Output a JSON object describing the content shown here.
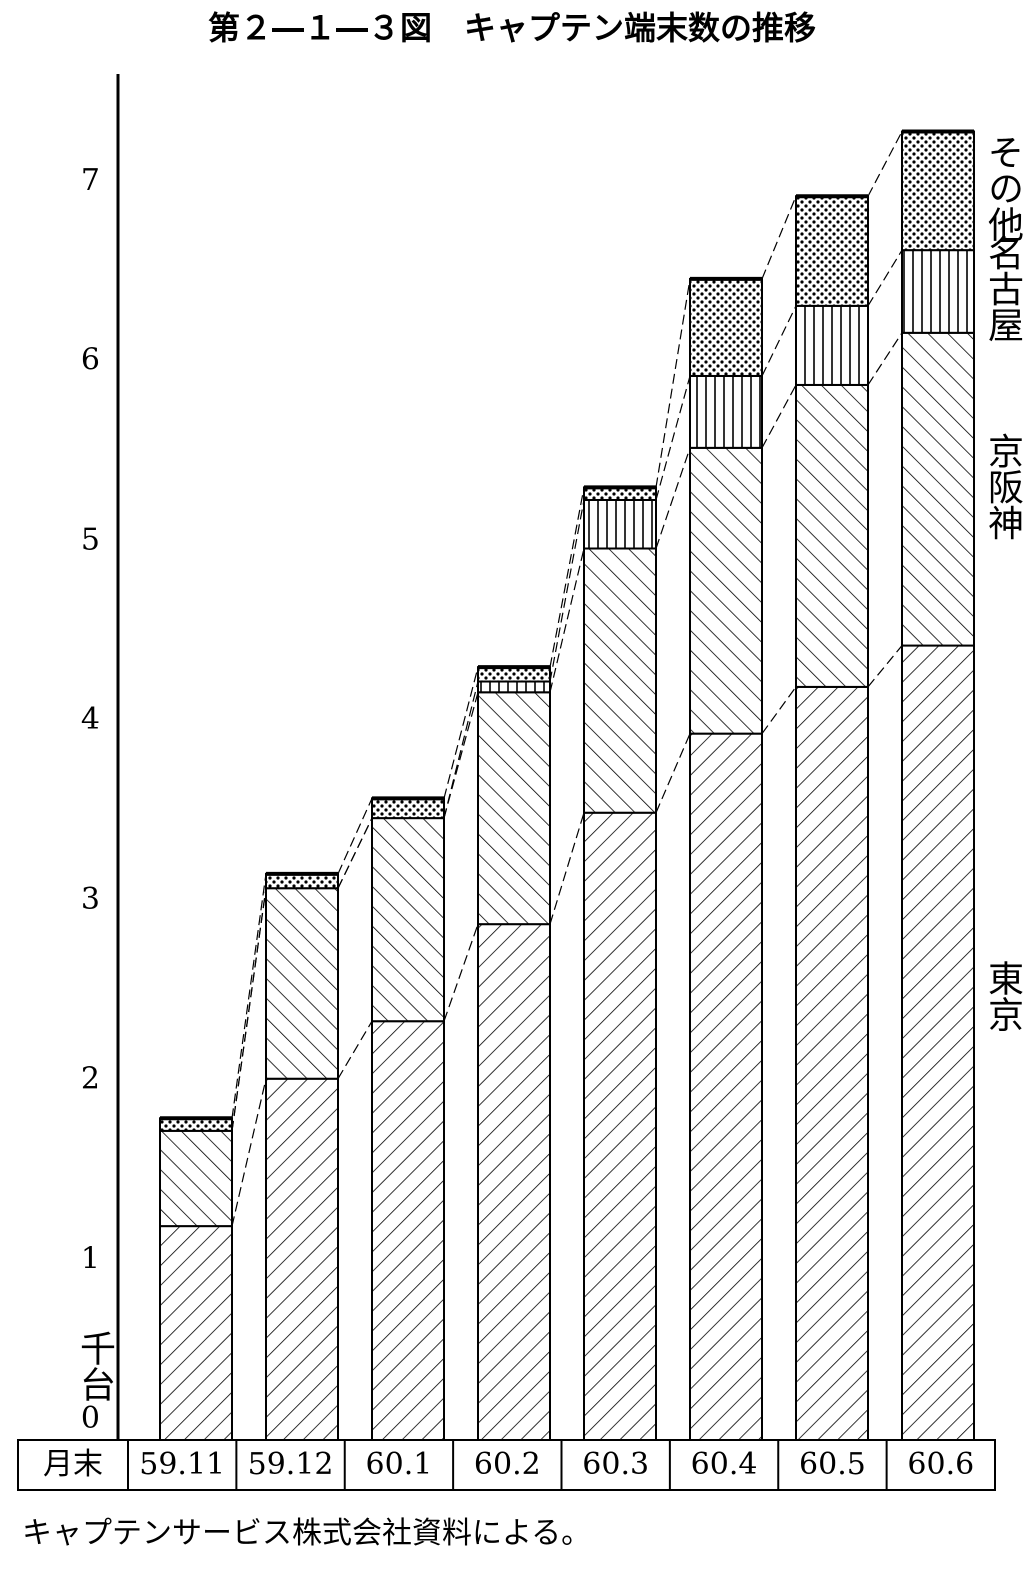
{
  "chart_data": {
    "type": "stacked-bar",
    "title": "第２―１―３図　キャプテン端末数の推移",
    "y_label": "千台",
    "category_label": "月末",
    "source": "キャプテンサービス株式会社資料による。",
    "categories": [
      "59.11",
      "59.12",
      "60.1",
      "60.2",
      "60.3",
      "60.4",
      "60.5",
      "60.6"
    ],
    "series": [
      {
        "name": "東京",
        "pattern": "hatch-forward",
        "values": [
          1.19,
          2.01,
          2.33,
          2.87,
          3.49,
          3.93,
          4.19,
          4.42
        ]
      },
      {
        "name": "京阪神",
        "pattern": "hatch-back",
        "values": [
          0.53,
          1.06,
          1.13,
          1.29,
          1.47,
          1.59,
          1.68,
          1.74
        ]
      },
      {
        "name": "名古屋",
        "pattern": "vertical",
        "values": [
          0,
          0,
          0,
          0.06,
          0.27,
          0.4,
          0.44,
          0.46
        ]
      },
      {
        "name": "その他",
        "pattern": "dots",
        "values": [
          0.07,
          0.08,
          0.11,
          0.08,
          0.07,
          0.54,
          0.61,
          0.66
        ]
      }
    ],
    "ylim": [
      0,
      7.6
    ],
    "yticks": [
      0,
      1,
      2,
      3,
      4,
      5,
      6,
      7
    ]
  }
}
